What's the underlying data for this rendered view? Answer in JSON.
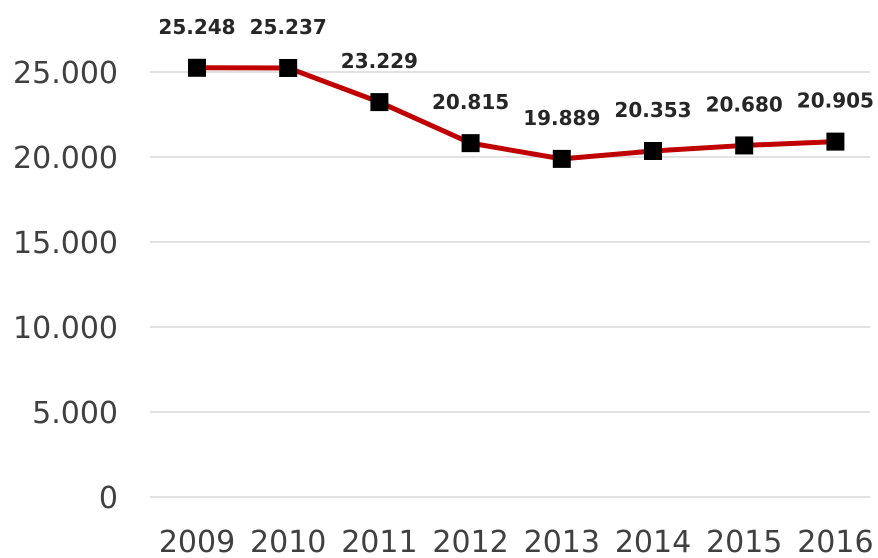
{
  "chart_data": {
    "type": "line",
    "categories": [
      "2009",
      "2010",
      "2011",
      "2012",
      "2013",
      "2014",
      "2015",
      "2016"
    ],
    "series": [
      {
        "values": [
          25248,
          25237,
          23229,
          20815,
          19889,
          20353,
          20680,
          20905
        ],
        "data_labels": [
          "25.248",
          "25.237",
          "23.229",
          "20.815",
          "19.889",
          "20.353",
          "20.680",
          "20.905"
        ]
      }
    ],
    "yticks": [
      {
        "value": 0,
        "label": "0"
      },
      {
        "value": 5000,
        "label": "5.000"
      },
      {
        "value": 10000,
        "label": "10.000"
      },
      {
        "value": 15000,
        "label": "15.000"
      },
      {
        "value": 20000,
        "label": "20.000"
      },
      {
        "value": 25000,
        "label": "25.000"
      }
    ],
    "ylim": [
      0,
      25000
    ],
    "grid": true,
    "legend": "none",
    "colors": {
      "line": "#c00000",
      "marker": "#000000",
      "grid": "#d9d9d9"
    }
  }
}
